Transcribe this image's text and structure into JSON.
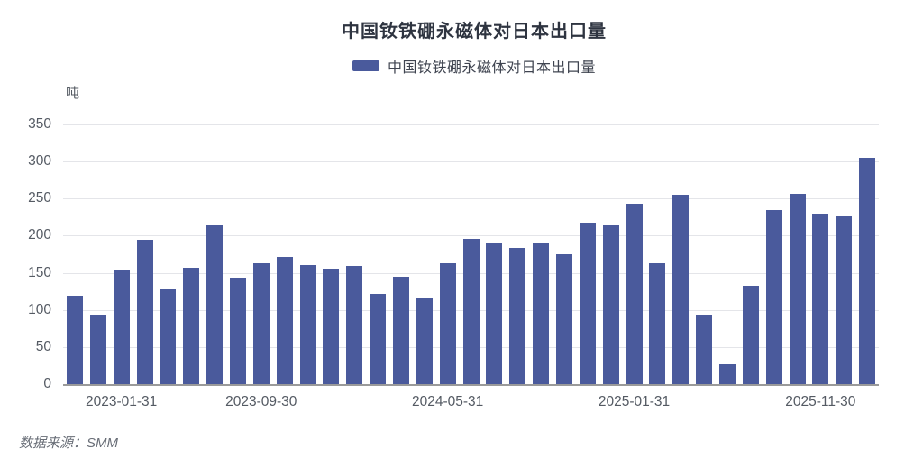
{
  "title": "中国钕铁硼永磁体对日本出口量",
  "legend": {
    "label": "中国钕铁硼永磁体对日本出口量",
    "marker_color": "#4a5a9c"
  },
  "source_note": "数据来源：SMM",
  "chart_data": {
    "type": "bar",
    "title": "中国钕铁硼永磁体对日本出口量",
    "unit_label": "吨",
    "xlabel": "",
    "ylabel": "吨",
    "ylim": [
      0,
      350
    ],
    "y_ticks": [
      0,
      50,
      100,
      150,
      200,
      250,
      300,
      350
    ],
    "grid": true,
    "legend_position": "top",
    "bar_color": "#4a5a9c",
    "values": [
      119,
      94,
      154,
      195,
      129,
      157,
      214,
      143,
      163,
      171,
      160,
      155,
      159,
      121,
      145,
      117,
      163,
      196,
      190,
      184,
      189,
      175,
      218,
      214,
      243,
      163,
      255,
      93,
      27,
      132,
      234,
      256,
      230,
      227,
      305
    ],
    "x_tick_labels": [
      {
        "index": 2,
        "label": "2023-01-31"
      },
      {
        "index": 8,
        "label": "2023-09-30"
      },
      {
        "index": 16,
        "label": "2024-05-31"
      },
      {
        "index": 24,
        "label": "2025-01-31"
      },
      {
        "index": 32,
        "label": "2025-11-30"
      }
    ]
  }
}
